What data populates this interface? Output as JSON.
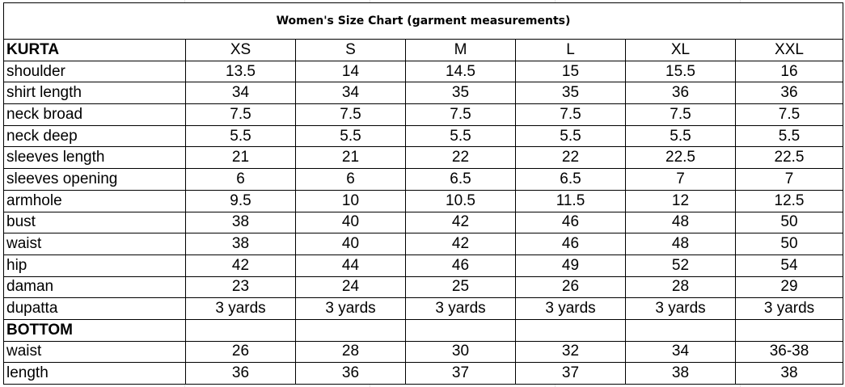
{
  "title": "Women's Size Chart (garment measurements)",
  "sizes": [
    "XS",
    "S",
    "M",
    "L",
    "XL",
    "XXL"
  ],
  "kurta": {
    "heading": "KURTA",
    "rows": [
      {
        "label": "shoulder",
        "values": [
          "13.5",
          "14",
          "14.5",
          "15",
          "15.5",
          "16"
        ]
      },
      {
        "label": "shirt length",
        "values": [
          "34",
          "34",
          "35",
          "35",
          "36",
          "36"
        ]
      },
      {
        "label": "neck broad",
        "values": [
          "7.5",
          "7.5",
          "7.5",
          "7.5",
          "7.5",
          "7.5"
        ]
      },
      {
        "label": "neck deep",
        "values": [
          "5.5",
          "5.5",
          "5.5",
          "5.5",
          "5.5",
          "5.5"
        ]
      },
      {
        "label": "sleeves length",
        "values": [
          "21",
          "21",
          "22",
          "22",
          "22.5",
          "22.5"
        ]
      },
      {
        "label": "sleeves opening",
        "values": [
          "6",
          "6",
          "6.5",
          "6.5",
          "7",
          "7"
        ]
      },
      {
        "label": "armhole",
        "values": [
          "9.5",
          "10",
          "10.5",
          "11.5",
          "12",
          "12.5"
        ]
      },
      {
        "label": "bust",
        "values": [
          "38",
          "40",
          "42",
          "46",
          "48",
          "50"
        ]
      },
      {
        "label": "waist",
        "values": [
          "38",
          "40",
          "42",
          "46",
          "48",
          "50"
        ]
      },
      {
        "label": "hip",
        "values": [
          "42",
          "44",
          "46",
          "49",
          "52",
          "54"
        ]
      },
      {
        "label": "daman",
        "values": [
          "23",
          "24",
          "25",
          "26",
          "28",
          "29"
        ]
      },
      {
        "label": "dupatta",
        "values": [
          "3 yards",
          "3 yards",
          "3 yards",
          "3 yards",
          "3 yards",
          "3 yards"
        ]
      }
    ]
  },
  "bottom": {
    "heading": "BOTTOM",
    "rows": [
      {
        "label": "waist",
        "values": [
          "26",
          "28",
          "30",
          "32",
          "34",
          "36-38"
        ]
      },
      {
        "label": "length",
        "values": [
          "36",
          "36",
          "37",
          "37",
          "38",
          "38"
        ]
      }
    ]
  }
}
